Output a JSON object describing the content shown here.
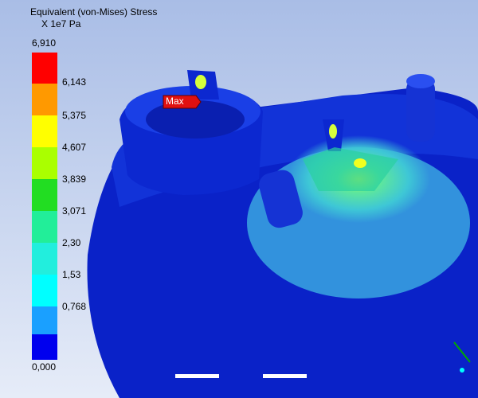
{
  "legend": {
    "title": "Equivalent (von-Mises) Stress",
    "unit": "X 1e7 Pa",
    "labels": [
      "6,910",
      "6,143",
      "5,375",
      "4,607",
      "3,839",
      "3,071",
      "2,30",
      "1,53",
      "0,768",
      "0,000"
    ]
  },
  "probe": {
    "label": "Max"
  }
}
